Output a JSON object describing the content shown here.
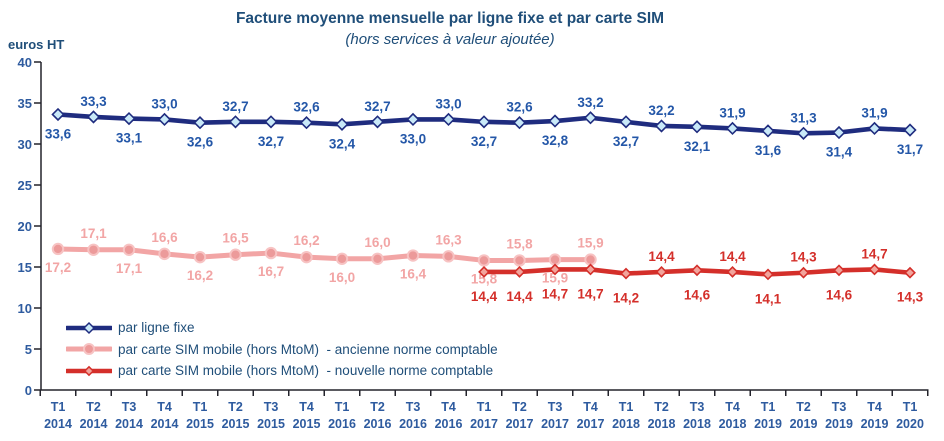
{
  "chart_data": {
    "type": "line",
    "title": "Facture moyenne mensuelle par ligne fixe et par carte SIM",
    "subtitle": "(hors services à valeur ajoutée)",
    "y_axis_label": "euros HT",
    "ylim": [
      0,
      40
    ],
    "y_ticks": [
      0,
      5,
      10,
      15,
      20,
      25,
      30,
      35,
      40
    ],
    "grid": false,
    "legend_position": "bottom-left-inside",
    "axis_color": "#23232B",
    "x_quarters": [
      "T1",
      "T2",
      "T3",
      "T4",
      "T1",
      "T2",
      "T3",
      "T4",
      "T1",
      "T2",
      "T3",
      "T4",
      "T1",
      "T2",
      "T3",
      "T4",
      "T1",
      "T2",
      "T3",
      "T4",
      "T1",
      "T2",
      "T3",
      "T4",
      "T1"
    ],
    "x_years": [
      "2014",
      "2014",
      "2014",
      "2014",
      "2015",
      "2015",
      "2015",
      "2015",
      "2016",
      "2016",
      "2016",
      "2016",
      "2017",
      "2017",
      "2017",
      "2017",
      "2018",
      "2018",
      "2018",
      "2018",
      "2019",
      "2019",
      "2019",
      "2019",
      "2020"
    ],
    "series": [
      {
        "id": "ligne-fixe",
        "name": "par ligne fixe",
        "color": "#1F2C7F",
        "line_width": 4.6,
        "marker": "diamond",
        "marker_size": 5.5,
        "marker_fill": "#C9E9F8",
        "marker_stroke": "#1F2C7F",
        "label_color": "#2457A8",
        "start_index": 0,
        "values": [
          33.6,
          33.3,
          33.1,
          33.0,
          32.6,
          32.7,
          32.7,
          32.6,
          32.4,
          32.7,
          33.0,
          33.0,
          32.7,
          32.6,
          32.8,
          33.2,
          32.7,
          32.2,
          32.1,
          31.9,
          31.6,
          31.3,
          31.4,
          31.9,
          31.7
        ],
        "labels": [
          "33,6",
          "33,3",
          "33,1",
          "33,0",
          "32,6",
          "32,7",
          "32,7",
          "32,6",
          "32,4",
          "32,7",
          "33,0",
          "33,0",
          "32,7",
          "32,6",
          "32,8",
          "33,2",
          "32,7",
          "32,2",
          "32,1",
          "31,9",
          "31,6",
          "31,3",
          "31,4",
          "31,9",
          "31,7"
        ],
        "label_sides": [
          "b",
          "a",
          "b",
          "a",
          "b",
          "a",
          "b",
          "a",
          "b",
          "a",
          "b",
          "a",
          "b",
          "a",
          "b",
          "a",
          "b",
          "a",
          "b",
          "a",
          "b",
          "a",
          "b",
          "a",
          "b"
        ],
        "label_offset_above": 11,
        "label_offset_below": 24
      },
      {
        "id": "sim-ancienne",
        "name": "par carte SIM mobile (hors MtoM)  - ancienne norme comptable",
        "color": "#F2A5A5",
        "line_width": 5,
        "marker": "circle",
        "marker_size": 5.2,
        "marker_fill": "#EC9A9A",
        "marker_stroke": "#F7C3C3",
        "label_color": "#F2A5A5",
        "start_index": 0,
        "values": [
          17.2,
          17.1,
          17.1,
          16.6,
          16.2,
          16.5,
          16.7,
          16.2,
          16.0,
          16.0,
          16.4,
          16.3,
          15.8,
          15.8,
          15.9,
          15.9
        ],
        "labels": [
          "17,2",
          "17,1",
          "17,1",
          "16,6",
          "16,2",
          "16,5",
          "16,7",
          "16,2",
          "16,0",
          "16,0",
          "16,4",
          "16,3",
          "15,8",
          "15,8",
          "15,9",
          "15,9"
        ],
        "label_sides": [
          "b",
          "a",
          "b",
          "a",
          "b",
          "a",
          "b",
          "a",
          "b",
          "a",
          "b",
          "a",
          "b",
          "a",
          "b",
          "a"
        ],
        "label_offset_above": 12,
        "label_offset_below": 23
      },
      {
        "id": "sim-nouvelle",
        "name": "par carte SIM mobile (hors MtoM)  - nouvelle norme comptable",
        "color": "#D42F2A",
        "line_width": 4.6,
        "marker": "diamond",
        "marker_size": 4.8,
        "marker_fill": "#F2A49C",
        "marker_stroke": "#D42F2A",
        "label_color": "#D42F2A",
        "start_index": 12,
        "values": [
          14.4,
          14.4,
          14.7,
          14.7,
          14.2,
          14.4,
          14.6,
          14.4,
          14.1,
          14.3,
          14.6,
          14.7,
          14.3
        ],
        "labels": [
          "14,4",
          "14,4",
          "14,7",
          "14,7",
          "14,2",
          "14,4",
          "14,6",
          "14,4",
          "14,1",
          "14,3",
          "14,6",
          "14,7",
          "14,3"
        ],
        "label_sides": [
          "b",
          "b",
          "b",
          "b",
          "b",
          "a",
          "b",
          "a",
          "b",
          "a",
          "b",
          "a",
          "b"
        ],
        "label_offset_above": 11,
        "label_offset_below": 29
      }
    ]
  }
}
